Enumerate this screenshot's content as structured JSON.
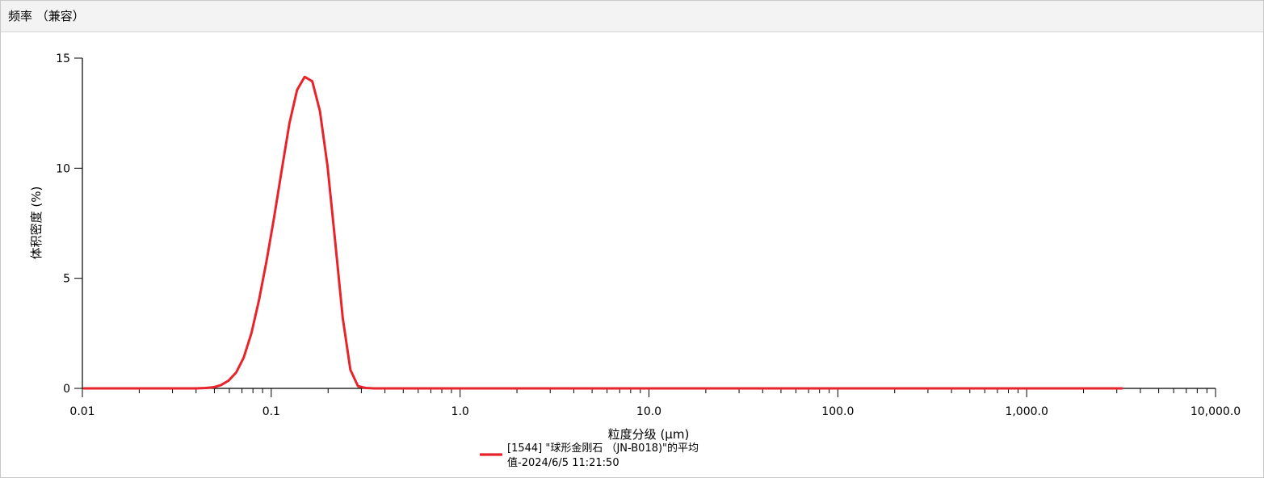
{
  "panel": {
    "title": "频率 （兼容）"
  },
  "chart_data": {
    "type": "line",
    "xscale": "log",
    "xlim": [
      0.01,
      10000
    ],
    "ylim": [
      0,
      15
    ],
    "xlabel": "粒度分级 (μm)",
    "ylabel": "体积密度 (%)",
    "xticks": [
      {
        "value": 0.01,
        "label": "0.01"
      },
      {
        "value": 0.1,
        "label": "0.1"
      },
      {
        "value": 1,
        "label": "1.0"
      },
      {
        "value": 10,
        "label": "10.0"
      },
      {
        "value": 100,
        "label": "100.0"
      },
      {
        "value": 1000,
        "label": "1,000.0"
      },
      {
        "value": 10000,
        "label": "10,000.0"
      }
    ],
    "yticks": [
      {
        "value": 0,
        "label": "0"
      },
      {
        "value": 5,
        "label": "5"
      },
      {
        "value": 10,
        "label": "10"
      },
      {
        "value": 15,
        "label": "15"
      }
    ],
    "grid": false,
    "legend_position": "bottom-center",
    "series": [
      {
        "name": "[1544] \"球形金刚石 （JN-B018)\"的平均值-2024/6/5 11:21:50",
        "legend_lines": [
          "[1544] \"球形金刚石 （JN-B018)\"的平均",
          "值-2024/6/5 11:21:50"
        ],
        "color": "#e8232a",
        "points": [
          [
            0.0102,
            0
          ],
          [
            0.02,
            0
          ],
          [
            0.03,
            0
          ],
          [
            0.04,
            0
          ],
          [
            0.045,
            0.02
          ],
          [
            0.0494,
            0.05
          ],
          [
            0.0542,
            0.15
          ],
          [
            0.0594,
            0.35
          ],
          [
            0.0652,
            0.72
          ],
          [
            0.0715,
            1.4
          ],
          [
            0.0785,
            2.5
          ],
          [
            0.0861,
            4.0
          ],
          [
            0.0945,
            5.8
          ],
          [
            0.1037,
            7.8
          ],
          [
            0.1138,
            9.95
          ],
          [
            0.1249,
            12.05
          ],
          [
            0.137,
            13.55
          ],
          [
            0.1503,
            14.15
          ],
          [
            0.1649,
            13.95
          ],
          [
            0.181,
            12.6
          ],
          [
            0.1986,
            10.1
          ],
          [
            0.2179,
            6.7
          ],
          [
            0.2391,
            3.2
          ],
          [
            0.2624,
            0.85
          ],
          [
            0.2879,
            0.1
          ],
          [
            0.3159,
            0.02
          ],
          [
            0.35,
            0
          ],
          [
            1,
            0
          ],
          [
            10,
            0
          ],
          [
            100,
            0
          ],
          [
            1000,
            0
          ],
          [
            3200,
            0
          ]
        ]
      }
    ]
  }
}
